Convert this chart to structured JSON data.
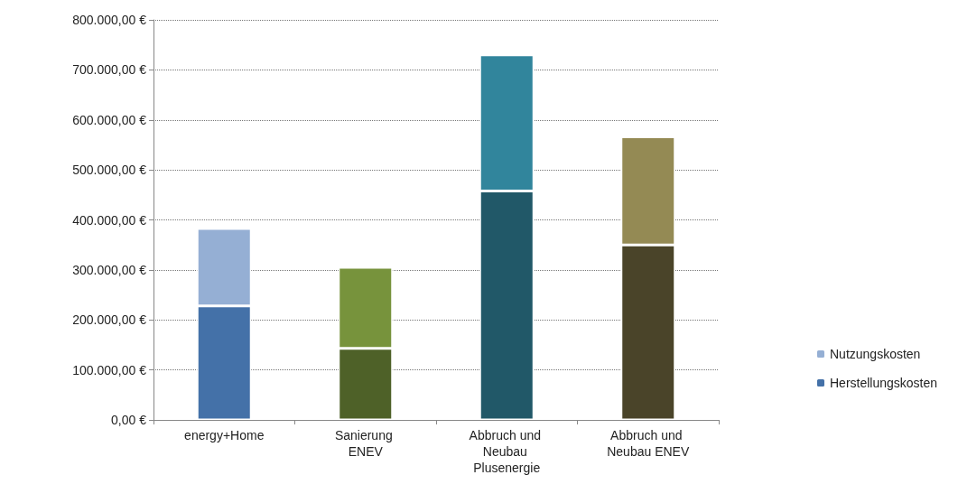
{
  "chart_data": {
    "type": "bar",
    "stacked": true,
    "categories": [
      "energy+Home",
      "Sanierung ENEV",
      "Abbruch und Neubau Plusenergie",
      "Abbruch und Neubau ENEV"
    ],
    "series": [
      {
        "name": "Herstellungskosten",
        "color": "#4471a8",
        "colors": [
          "#4471a8",
          "#4e6128",
          "#215868",
          "#4a4429"
        ],
        "values": [
          228000,
          143000,
          458000,
          350000
        ]
      },
      {
        "name": "Nutzungskosten",
        "color": "#95afd4",
        "colors": [
          "#95afd4",
          "#77933c",
          "#31859c",
          "#948a54"
        ],
        "values": [
          155000,
          162000,
          272000,
          216000
        ]
      }
    ],
    "ylim": [
      0,
      800000
    ],
    "yticks": [
      {
        "value": 0,
        "label": "0,00 €"
      },
      {
        "value": 100000,
        "label": "100.000,00 €"
      },
      {
        "value": 200000,
        "label": "200.000,00 €"
      },
      {
        "value": 300000,
        "label": "300.000,00 €"
      },
      {
        "value": 400000,
        "label": "400.000,00 €"
      },
      {
        "value": 500000,
        "label": "500.000,00 €"
      },
      {
        "value": 600000,
        "label": "600.000,00 €"
      },
      {
        "value": 700000,
        "label": "700.000,00 €"
      },
      {
        "value": 800000,
        "label": "800.000,00 €"
      }
    ],
    "grid": "y",
    "legend": "right"
  }
}
